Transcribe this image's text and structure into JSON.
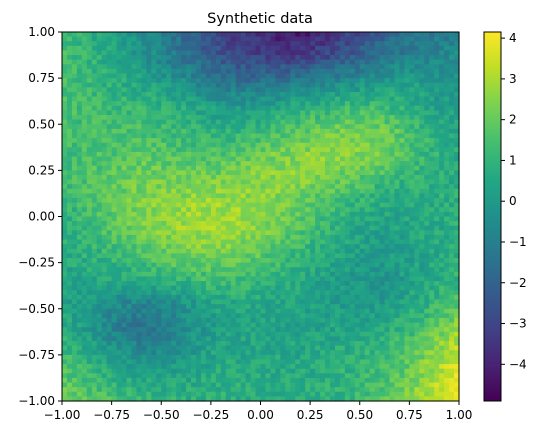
{
  "chart_data": {
    "type": "heatmap",
    "title": "Synthetic data",
    "xlabel": "",
    "ylabel": "",
    "xlim": [
      -1.0,
      1.0
    ],
    "ylim": [
      -1.0,
      1.0
    ],
    "x_ticks": [
      -1.0,
      -0.75,
      -0.5,
      -0.25,
      0.0,
      0.25,
      0.5,
      0.75,
      1.0
    ],
    "x_tick_labels": [
      "−1.00",
      "−0.75",
      "−0.50",
      "−0.25",
      "0.00",
      "0.25",
      "0.50",
      "0.75",
      "1.00"
    ],
    "y_ticks": [
      1.0,
      0.75,
      0.5,
      0.25,
      0.0,
      -0.25,
      -0.5,
      -0.75,
      -1.0
    ],
    "y_tick_labels": [
      "1.00",
      "0.75",
      "0.50",
      "0.25",
      "0.00",
      "−0.25",
      "−0.50",
      "−0.75",
      "−1.00"
    ],
    "colormap": "viridis",
    "value_range": [
      -4.9,
      4.15
    ],
    "colorbar_ticks": [
      4,
      3,
      2,
      1,
      0,
      -1,
      -2,
      -3,
      -4
    ],
    "colorbar_tick_labels": [
      "4",
      "3",
      "2",
      "1",
      "0",
      "−1",
      "−2",
      "−3",
      "−4"
    ],
    "grid": [
      [
        1.2,
        0.8,
        0.2,
        -0.5,
        -1.2,
        -2.2,
        -3.0,
        -3.6,
        -4.0,
        -4.3,
        -3.8,
        -3.0,
        -2.2,
        -1.6,
        -1.2,
        -1.0
      ],
      [
        1.4,
        1.0,
        0.5,
        -0.2,
        -0.9,
        -1.8,
        -2.5,
        -3.0,
        -3.2,
        -3.2,
        -2.8,
        -2.2,
        -1.5,
        -1.0,
        -0.7,
        -0.5
      ],
      [
        1.5,
        1.2,
        0.8,
        0.4,
        -0.1,
        -0.7,
        -1.3,
        -1.6,
        -1.5,
        -1.2,
        -0.8,
        -0.4,
        0.0,
        0.2,
        0.0,
        -0.2
      ],
      [
        1.5,
        1.3,
        1.2,
        1.1,
        0.8,
        0.4,
        0.0,
        0.0,
        0.3,
        0.7,
        1.0,
        1.2,
        1.2,
        0.8,
        0.3,
        0.0
      ],
      [
        1.4,
        1.4,
        1.4,
        1.5,
        1.3,
        1.0,
        0.8,
        1.0,
        1.4,
        1.8,
        2.1,
        2.3,
        2.2,
        1.6,
        0.9,
        0.4
      ],
      [
        1.3,
        1.5,
        1.7,
        1.8,
        1.7,
        1.5,
        1.6,
        1.9,
        2.2,
        2.5,
        2.6,
        2.5,
        2.2,
        1.6,
        1.0,
        0.6
      ],
      [
        1.2,
        1.6,
        1.9,
        2.2,
        2.2,
        2.2,
        2.3,
        2.5,
        2.6,
        2.5,
        2.2,
        1.8,
        1.3,
        1.0,
        0.8,
        0.7
      ],
      [
        1.0,
        1.5,
        2.0,
        2.3,
        2.6,
        2.8,
        2.8,
        2.7,
        2.4,
        2.0,
        1.5,
        1.0,
        0.7,
        0.6,
        0.7,
        0.8
      ],
      [
        0.8,
        1.2,
        1.7,
        2.2,
        2.6,
        2.9,
        3.0,
        2.7,
        2.2,
        1.6,
        1.0,
        0.5,
        0.3,
        0.4,
        0.6,
        0.8
      ],
      [
        0.6,
        0.9,
        1.2,
        1.6,
        2.0,
        2.3,
        2.3,
        2.1,
        1.6,
        1.1,
        0.6,
        0.2,
        0.0,
        0.2,
        0.5,
        0.8
      ],
      [
        0.4,
        0.5,
        0.6,
        0.8,
        1.1,
        1.3,
        1.4,
        1.3,
        1.0,
        0.6,
        0.3,
        0.0,
        -0.1,
        0.2,
        0.6,
        1.0
      ],
      [
        0.4,
        0.0,
        -0.5,
        -0.8,
        -0.5,
        0.1,
        0.5,
        0.6,
        0.5,
        0.3,
        0.1,
        0.0,
        0.0,
        0.4,
        1.0,
        1.6
      ],
      [
        0.7,
        0.0,
        -1.0,
        -1.4,
        -1.0,
        -0.3,
        0.2,
        0.3,
        0.3,
        0.3,
        0.3,
        0.4,
        0.6,
        1.0,
        1.8,
        2.6
      ],
      [
        1.2,
        0.6,
        -0.2,
        -0.7,
        -0.5,
        0.0,
        0.4,
        0.5,
        0.5,
        0.5,
        0.6,
        0.8,
        1.1,
        1.6,
        2.5,
        3.4
      ],
      [
        1.8,
        1.3,
        0.8,
        0.4,
        0.3,
        0.5,
        0.7,
        0.7,
        0.6,
        0.6,
        0.8,
        1.0,
        1.4,
        2.0,
        2.9,
        3.8
      ],
      [
        2.2,
        1.8,
        1.4,
        1.1,
        0.9,
        0.9,
        0.9,
        0.8,
        0.7,
        0.7,
        0.9,
        1.1,
        1.6,
        2.3,
        3.2,
        4.0
      ]
    ]
  }
}
